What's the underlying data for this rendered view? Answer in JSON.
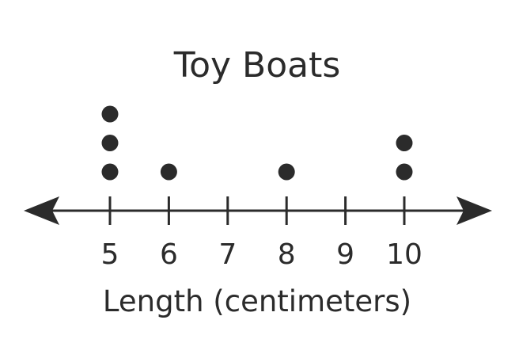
{
  "chart_data": {
    "type": "scatter",
    "subtype": "dot-plot",
    "title": "Toy Boats",
    "xlabel": "Length (centimeters)",
    "ylabel": "",
    "ticks": [
      5,
      6,
      7,
      8,
      9,
      10
    ],
    "tick_labels": [
      "5",
      "6",
      "7",
      "8",
      "9",
      "10"
    ],
    "points": [
      {
        "x": 5,
        "count": 3
      },
      {
        "x": 6,
        "count": 1
      },
      {
        "x": 8,
        "count": 1
      },
      {
        "x": 10,
        "count": 2
      }
    ],
    "grid": false,
    "axis_arrows": true,
    "colors": {
      "ink": "#2b2b2b"
    }
  }
}
